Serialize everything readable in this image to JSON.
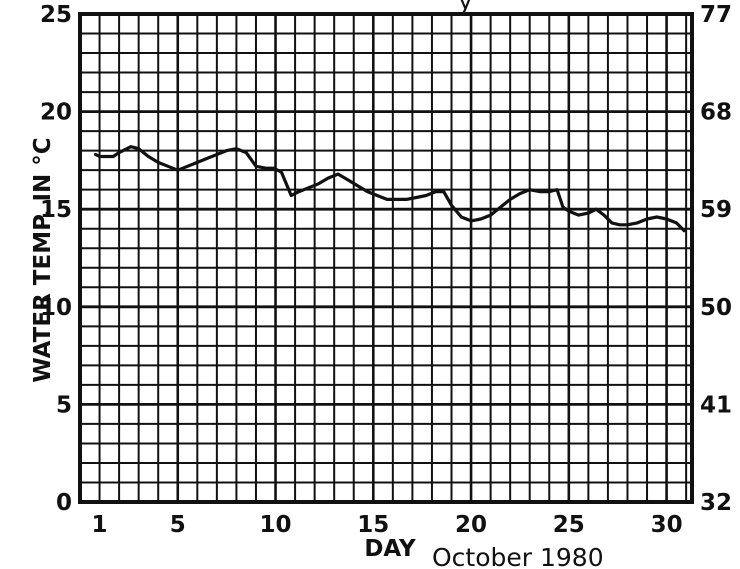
{
  "chart_data": {
    "type": "line",
    "title_fragment": "y",
    "caption": "October 1980",
    "xlabel": "DAY",
    "ylabel": "WATER TEMP. IN °C",
    "xlim": [
      0,
      31.3
    ],
    "ylim": [
      0,
      25
    ],
    "x_ticks": [
      1,
      5,
      10,
      15,
      20,
      25,
      30
    ],
    "y_ticks": [
      0,
      5,
      10,
      15,
      20,
      25
    ],
    "y2_ticks": [
      {
        "label": "32",
        "c": 0
      },
      {
        "label": "41",
        "c": 5
      },
      {
        "label": "50",
        "c": 10
      },
      {
        "label": "59",
        "c": 15
      },
      {
        "label": "68",
        "c": 20
      },
      {
        "label": "77",
        "c": 25
      }
    ],
    "grid": true,
    "series": [
      {
        "color": "#111111",
        "points": [
          [
            0.8,
            17.8
          ],
          [
            1.0,
            17.7
          ],
          [
            1.3,
            17.7
          ],
          [
            1.7,
            17.7
          ],
          [
            2.0,
            17.9
          ],
          [
            2.6,
            18.2
          ],
          [
            3.0,
            18.1
          ],
          [
            3.5,
            17.7
          ],
          [
            4.0,
            17.4
          ],
          [
            4.5,
            17.2
          ],
          [
            5.0,
            17.0
          ],
          [
            5.5,
            17.2
          ],
          [
            6.0,
            17.4
          ],
          [
            6.5,
            17.6
          ],
          [
            7.0,
            17.8
          ],
          [
            7.5,
            18.0
          ],
          [
            8.0,
            18.1
          ],
          [
            8.5,
            17.9
          ],
          [
            9.0,
            17.2
          ],
          [
            9.5,
            17.1
          ],
          [
            9.9,
            17.1
          ],
          [
            10.3,
            16.9
          ],
          [
            10.8,
            15.7
          ],
          [
            11.2,
            15.9
          ],
          [
            11.7,
            16.1
          ],
          [
            12.2,
            16.3
          ],
          [
            12.7,
            16.6
          ],
          [
            13.2,
            16.8
          ],
          [
            13.7,
            16.5
          ],
          [
            14.2,
            16.2
          ],
          [
            14.7,
            15.9
          ],
          [
            15.2,
            15.7
          ],
          [
            15.7,
            15.5
          ],
          [
            16.2,
            15.5
          ],
          [
            16.7,
            15.5
          ],
          [
            17.2,
            15.6
          ],
          [
            17.7,
            15.7
          ],
          [
            18.2,
            15.9
          ],
          [
            18.6,
            15.9
          ],
          [
            19.0,
            15.2
          ],
          [
            19.5,
            14.6
          ],
          [
            20.0,
            14.4
          ],
          [
            20.5,
            14.5
          ],
          [
            21.0,
            14.7
          ],
          [
            21.5,
            15.1
          ],
          [
            22.0,
            15.5
          ],
          [
            22.5,
            15.8
          ],
          [
            23.0,
            16.0
          ],
          [
            23.5,
            15.9
          ],
          [
            24.0,
            15.9
          ],
          [
            24.4,
            16.0
          ],
          [
            24.7,
            15.1
          ],
          [
            25.0,
            14.9
          ],
          [
            25.5,
            14.7
          ],
          [
            26.0,
            14.8
          ],
          [
            26.4,
            15.0
          ],
          [
            26.8,
            14.7
          ],
          [
            27.2,
            14.3
          ],
          [
            27.6,
            14.2
          ],
          [
            28.0,
            14.2
          ],
          [
            28.5,
            14.3
          ],
          [
            29.0,
            14.5
          ],
          [
            29.5,
            14.6
          ],
          [
            30.0,
            14.5
          ],
          [
            30.5,
            14.3
          ],
          [
            30.9,
            13.9
          ]
        ]
      }
    ]
  }
}
